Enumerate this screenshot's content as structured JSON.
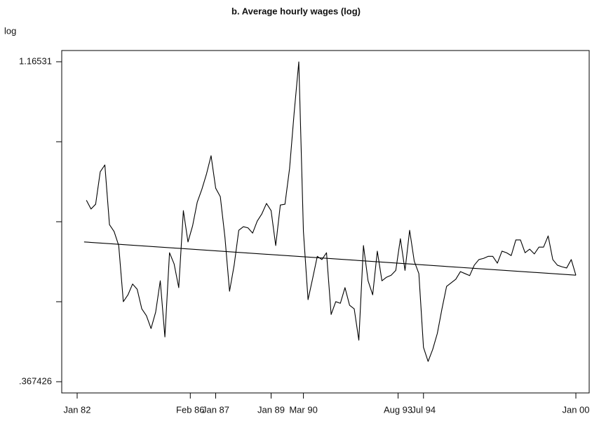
{
  "chart_data": {
    "type": "line",
    "title": "b. Average hourly wages (log)",
    "ylabel": "log",
    "xlim": [
      "Jan 82",
      "Jan 00"
    ],
    "xticks": [
      "Jan 82",
      "Feb 86",
      "Jan 87",
      "Jan 89",
      "Mar 90",
      "Aug 93",
      "Jul 94",
      "Jan 00"
    ],
    "ylim": [
      0.367426,
      1.16531
    ],
    "yticks": [
      {
        "value": 0.367426,
        "label": ".367426"
      },
      {
        "value": 0.56689,
        "label": null
      },
      {
        "value": 0.76637,
        "label": null
      },
      {
        "value": 0.96584,
        "label": null
      },
      1.16531
    ],
    "grid": false,
    "series": [
      {
        "color": "#000000",
        "x": [
          "May 82",
          "Jul 82",
          "Sep 82",
          "Nov 82",
          "Jan 83",
          "Mar 83",
          "May 83",
          "Jul 83",
          "Sep 83",
          "Nov 83",
          "Jan 84",
          "Mar 84",
          "May 84",
          "Jul 84",
          "Sep 84",
          "Nov 84",
          "Jan 85",
          "Mar 85",
          "May 85",
          "Jul 85",
          "Sep 85",
          "Nov 85",
          "Jan 86",
          "Mar 86",
          "May 86",
          "Jul 86",
          "Sep 86",
          "Nov 86",
          "Jan 87",
          "Mar 87",
          "May 87",
          "Jul 87",
          "Sep 87",
          "Nov 87",
          "Jan 88",
          "Mar 88",
          "May 88",
          "Jul 88",
          "Sep 88",
          "Nov 88",
          "Jan 89",
          "Mar 89",
          "May 89",
          "Jul 89",
          "Sep 89",
          "Nov 89",
          "Jan 90",
          "Mar 90",
          "May 90",
          "Jul 90",
          "Sep 90",
          "Nov 90",
          "Jan 91",
          "Mar 91",
          "May 91",
          "Jul 91",
          "Sep 91",
          "Nov 91",
          "Jan 92",
          "Mar 92",
          "May 92",
          "Jul 92",
          "Sep 92",
          "Nov 92",
          "Jan 93",
          "Mar 93",
          "May 93",
          "Jul 93",
          "Sep 93",
          "Nov 93",
          "Jan 94",
          "Mar 94",
          "May 94",
          "Jul 94",
          "Sep 94",
          "Nov 94",
          "Jan 95",
          "Mar 95",
          "May 95",
          "Jul 95",
          "Sep 95",
          "Nov 95",
          "Jan 96",
          "Mar 96",
          "May 96",
          "Jul 96",
          "Sep 96",
          "Nov 96",
          "Jan 97",
          "Mar 97",
          "May 97",
          "Jul 97",
          "Sep 97",
          "Nov 97",
          "Jan 98",
          "Mar 98",
          "May 98",
          "Jul 98",
          "Sep 98",
          "Nov 98",
          "Jan 99",
          "Mar 99",
          "May 99",
          "Jul 99",
          "Sep 99",
          "Nov 99",
          "Jan 00"
        ],
        "values": [
          0.82,
          0.798,
          0.81,
          0.891,
          0.908,
          0.759,
          0.742,
          0.707,
          0.567,
          0.584,
          0.611,
          0.598,
          0.549,
          0.532,
          0.5,
          0.541,
          0.619,
          0.479,
          0.689,
          0.661,
          0.602,
          0.794,
          0.716,
          0.756,
          0.815,
          0.847,
          0.885,
          0.931,
          0.85,
          0.829,
          0.728,
          0.593,
          0.658,
          0.745,
          0.754,
          0.751,
          0.738,
          0.768,
          0.786,
          0.812,
          0.794,
          0.707,
          0.808,
          0.81,
          0.899,
          1.039,
          1.165,
          0.742,
          0.572,
          0.625,
          0.68,
          0.672,
          0.689,
          0.535,
          0.567,
          0.563,
          0.602,
          0.558,
          0.549,
          0.471,
          0.707,
          0.619,
          0.584,
          0.693,
          0.619,
          0.628,
          0.633,
          0.645,
          0.724,
          0.645,
          0.745,
          0.668,
          0.637,
          0.453,
          0.418,
          0.448,
          0.488,
          0.549,
          0.605,
          0.614,
          0.623,
          0.642,
          0.637,
          0.632,
          0.658,
          0.672,
          0.675,
          0.68,
          0.68,
          0.663,
          0.693,
          0.689,
          0.682,
          0.721,
          0.721,
          0.689,
          0.698,
          0.686,
          0.703,
          0.703,
          0.731,
          0.672,
          0.658,
          0.654,
          0.651,
          0.672,
          0.633
        ]
      },
      {
        "color": "#000000",
        "x": [
          "Apr 82",
          "Jan 00"
        ],
        "values": [
          0.716,
          0.633
        ]
      }
    ]
  }
}
